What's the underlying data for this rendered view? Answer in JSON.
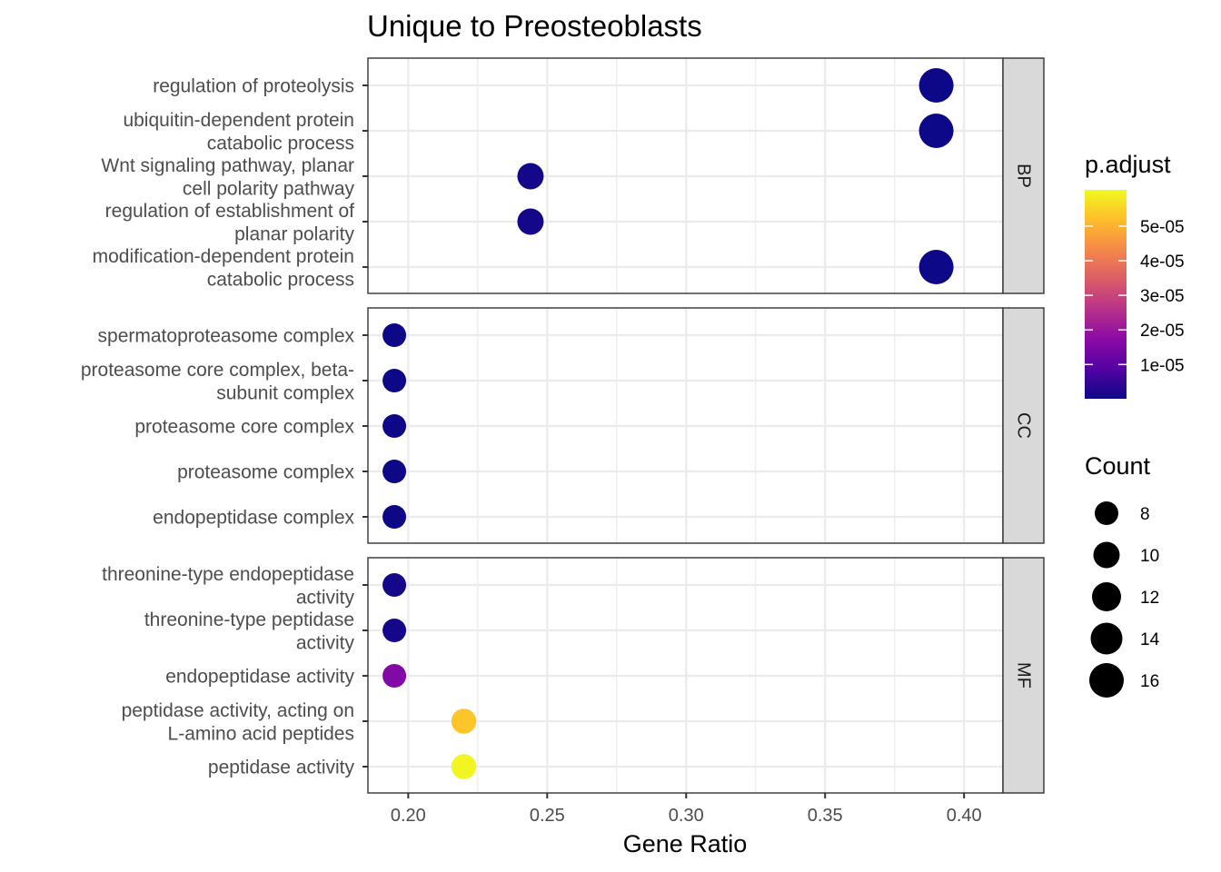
{
  "chart_data": {
    "type": "scatter",
    "title": "Unique to Preosteoblasts",
    "xlabel": "Gene Ratio",
    "ylabel": "",
    "xlim": [
      0.1855,
      0.414
    ],
    "x_ticks": [
      0.2,
      0.25,
      0.3,
      0.35,
      0.4
    ],
    "x_tick_labels": [
      "0.20",
      "0.25",
      "0.30",
      "0.35",
      "0.40"
    ],
    "grid": true,
    "facets": [
      {
        "name": "BP",
        "terms": [
          {
            "label": [
              "regulation of proteolysis"
            ],
            "gene_ratio": 0.39,
            "count": 16,
            "p_adjust": 1e-07
          },
          {
            "label": [
              "ubiquitin-dependent protein",
              "catabolic process"
            ],
            "gene_ratio": 0.39,
            "count": 16,
            "p_adjust": 1e-07
          },
          {
            "label": [
              "Wnt signaling pathway, planar",
              "cell polarity pathway"
            ],
            "gene_ratio": 0.244,
            "count": 10,
            "p_adjust": 1e-06
          },
          {
            "label": [
              "regulation of establishment of",
              "planar polarity"
            ],
            "gene_ratio": 0.244,
            "count": 10,
            "p_adjust": 1e-06
          },
          {
            "label": [
              "modification-dependent protein",
              "catabolic process"
            ],
            "gene_ratio": 0.39,
            "count": 16,
            "p_adjust": 1e-07
          }
        ]
      },
      {
        "name": "CC",
        "terms": [
          {
            "label": [
              "spermatoproteasome complex"
            ],
            "gene_ratio": 0.195,
            "count": 8,
            "p_adjust": 1e-07
          },
          {
            "label": [
              "proteasome core complex, beta-",
              "subunit complex"
            ],
            "gene_ratio": 0.195,
            "count": 8,
            "p_adjust": 1e-07
          },
          {
            "label": [
              "proteasome core complex"
            ],
            "gene_ratio": 0.195,
            "count": 8,
            "p_adjust": 1e-07
          },
          {
            "label": [
              "proteasome complex"
            ],
            "gene_ratio": 0.195,
            "count": 8,
            "p_adjust": 2e-07
          },
          {
            "label": [
              "endopeptidase complex"
            ],
            "gene_ratio": 0.195,
            "count": 8,
            "p_adjust": 2e-07
          }
        ]
      },
      {
        "name": "MF",
        "terms": [
          {
            "label": [
              "threonine-type endopeptidase",
              "activity"
            ],
            "gene_ratio": 0.195,
            "count": 8,
            "p_adjust": 1e-06
          },
          {
            "label": [
              "threonine-type peptidase",
              "activity"
            ],
            "gene_ratio": 0.195,
            "count": 8,
            "p_adjust": 1e-06
          },
          {
            "label": [
              "endopeptidase activity"
            ],
            "gene_ratio": 0.195,
            "count": 8,
            "p_adjust": 1.6e-05
          },
          {
            "label": [
              "peptidase activity, acting on",
              "L-amino acid peptides"
            ],
            "gene_ratio": 0.22,
            "count": 9,
            "p_adjust": 5.3e-05
          },
          {
            "label": [
              "peptidase activity"
            ],
            "gene_ratio": 0.22,
            "count": 9,
            "p_adjust": 6e-05
          }
        ]
      }
    ],
    "color_legend": {
      "title": "p.adjust",
      "range": [
        1e-07,
        6.05e-05
      ],
      "ticks": [
        1e-05,
        2e-05,
        3e-05,
        4e-05,
        5e-05
      ],
      "tick_labels": [
        "1e-05",
        "2e-05",
        "3e-05",
        "4e-05",
        "5e-05"
      ],
      "colormap": [
        "#0d0887",
        "#5302a3",
        "#8b0aa5",
        "#b83289",
        "#db5c68",
        "#f48849",
        "#febd2a",
        "#f0f921"
      ]
    },
    "size_legend": {
      "title": "Count",
      "values": [
        8,
        10,
        12,
        14,
        16
      ],
      "labels": [
        "8",
        "10",
        "12",
        "14",
        "16"
      ],
      "color": "#000000"
    },
    "legend_position": "right"
  }
}
